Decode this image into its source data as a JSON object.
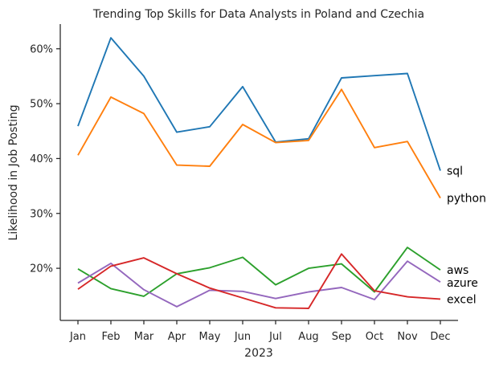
{
  "chart_data": {
    "type": "line",
    "title": "Trending Top Skills for Data Analysts in Poland and Czechia",
    "xlabel": "2023",
    "ylabel": "Likelihood in Job Posting",
    "categories": [
      "Jan",
      "Feb",
      "Mar",
      "Apr",
      "May",
      "Jun",
      "Jul",
      "Aug",
      "Sep",
      "Oct",
      "Nov",
      "Dec"
    ],
    "ylim": [
      10.5,
      64.5
    ],
    "yticks": [
      20,
      30,
      40,
      50,
      60
    ],
    "ytick_labels": [
      "20%",
      "30%",
      "40%",
      "50%",
      "60%"
    ],
    "grid": false,
    "legend": "none",
    "series": [
      {
        "name": "sql",
        "color": "#1f77b4",
        "values": [
          45.9,
          62.0,
          55.0,
          44.8,
          45.8,
          53.1,
          43.0,
          43.6,
          54.7,
          55.1,
          55.5,
          37.8
        ]
      },
      {
        "name": "python",
        "color": "#ff7f0e",
        "values": [
          40.6,
          51.2,
          48.2,
          38.8,
          38.6,
          46.2,
          42.9,
          43.3,
          52.6,
          42.0,
          43.1,
          32.8
        ]
      },
      {
        "name": "aws",
        "color": "#2ca02c",
        "values": [
          19.9,
          16.3,
          14.9,
          19.0,
          20.1,
          22.0,
          17.0,
          20.0,
          20.8,
          15.7,
          23.8,
          19.7
        ]
      },
      {
        "name": "azure",
        "color": "#9467bd",
        "values": [
          17.3,
          20.9,
          16.1,
          13.0,
          16.0,
          15.8,
          14.5,
          15.7,
          16.5,
          14.3,
          21.3,
          17.5
        ]
      },
      {
        "name": "excel",
        "color": "#d62728",
        "values": [
          16.2,
          20.4,
          21.9,
          19.0,
          16.4,
          14.6,
          12.8,
          12.7,
          22.6,
          15.9,
          14.8,
          14.4
        ]
      }
    ]
  }
}
